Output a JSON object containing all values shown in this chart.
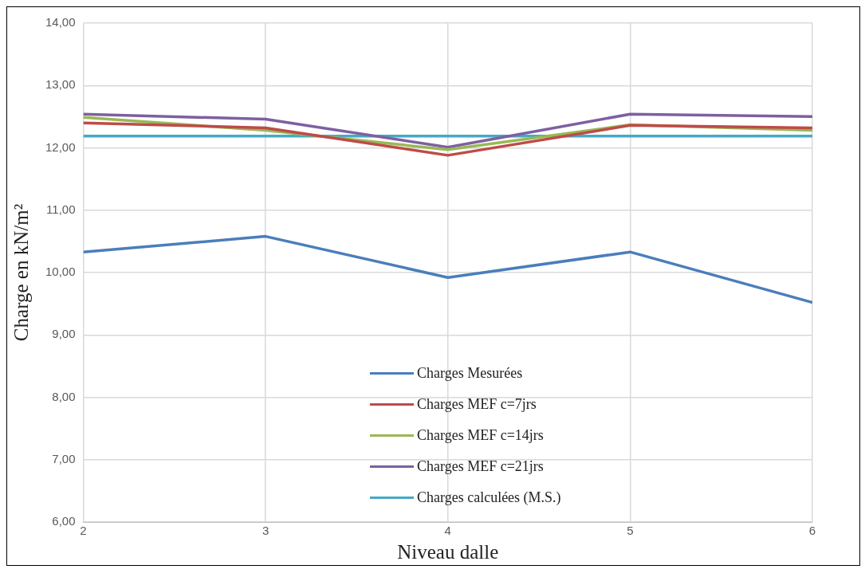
{
  "chart_data": {
    "type": "line",
    "xlabel": "Niveau dalle",
    "ylabel": "Charge en kN/m²",
    "x": [
      2,
      3,
      4,
      5,
      6
    ],
    "xlim": [
      2,
      6
    ],
    "xticks": [
      2,
      3,
      4,
      5,
      6
    ],
    "ylim": [
      6,
      14
    ],
    "yticks": [
      {
        "value": 6,
        "label": "6,00"
      },
      {
        "value": 7,
        "label": "7,00"
      },
      {
        "value": 8,
        "label": "8,00"
      },
      {
        "value": 9,
        "label": "9,00"
      },
      {
        "value": 10,
        "label": "10,00"
      },
      {
        "value": 11,
        "label": "11,00"
      },
      {
        "value": 12,
        "label": "12,00"
      },
      {
        "value": 13,
        "label": "13,00"
      },
      {
        "value": 14,
        "label": "14,00"
      }
    ],
    "grid": true,
    "legend": "bottom",
    "marker": "none",
    "line_style": "solid",
    "series": [
      {
        "name": "Charges Mesurées",
        "color": "#4a7ebb",
        "values": [
          10.33,
          10.58,
          9.92,
          10.33,
          9.52
        ]
      },
      {
        "name": "Charges MEF c=7jrs",
        "color": "#be4b48",
        "values": [
          12.4,
          12.32,
          11.88,
          12.36,
          12.32
        ]
      },
      {
        "name": "Charges MEF c=14jrs",
        "color": "#98b954",
        "values": [
          12.49,
          12.28,
          11.97,
          12.37,
          12.28
        ]
      },
      {
        "name": "Charges MEF c=21jrs",
        "color": "#7d60a0",
        "values": [
          12.54,
          12.46,
          12.01,
          12.54,
          12.5
        ]
      },
      {
        "name": "Charges calculées (M.S.)",
        "color": "#46aac5",
        "values": [
          12.19,
          12.19,
          12.19,
          12.19,
          12.19
        ]
      }
    ]
  }
}
